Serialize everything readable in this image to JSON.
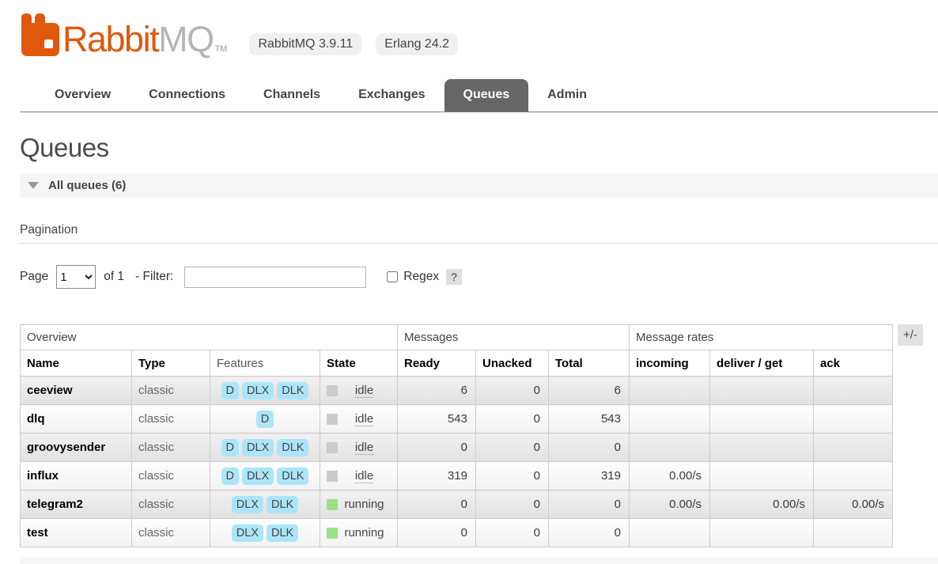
{
  "header": {
    "brand_orange": "Rabbit",
    "brand_gray": "MQ",
    "trademark": "TM",
    "badges": [
      "RabbitMQ 3.9.11",
      "Erlang 24.2"
    ]
  },
  "nav": {
    "tabs": [
      {
        "label": "Overview",
        "active": false
      },
      {
        "label": "Connections",
        "active": false
      },
      {
        "label": "Channels",
        "active": false
      },
      {
        "label": "Exchanges",
        "active": false
      },
      {
        "label": "Queues",
        "active": true
      },
      {
        "label": "Admin",
        "active": false
      }
    ]
  },
  "page": {
    "title": "Queues",
    "section_label": "All queues (6)",
    "pagination_label": "Pagination",
    "page_label": "Page",
    "page_selected": "1",
    "of_label": "of 1",
    "filter_label": "- Filter:",
    "filter_value": "",
    "regex_label": "Regex",
    "help_label": "?"
  },
  "table": {
    "group_headers": [
      "Overview",
      "Messages",
      "Message rates"
    ],
    "columns": [
      "Name",
      "Type",
      "Features",
      "State",
      "Ready",
      "Unacked",
      "Total",
      "incoming",
      "deliver / get",
      "ack"
    ],
    "plus_minus_label": "+/-",
    "rows": [
      {
        "name": "ceeview",
        "type": "classic",
        "features": [
          "D",
          "DLX",
          "DLK"
        ],
        "state": "idle",
        "ready": "6",
        "unacked": "0",
        "total": "6",
        "incoming": "",
        "deliver_get": "",
        "ack": ""
      },
      {
        "name": "dlq",
        "type": "classic",
        "features": [
          "D"
        ],
        "state": "idle",
        "ready": "543",
        "unacked": "0",
        "total": "543",
        "incoming": "",
        "deliver_get": "",
        "ack": ""
      },
      {
        "name": "groovysender",
        "type": "classic",
        "features": [
          "D",
          "DLX",
          "DLK"
        ],
        "state": "idle",
        "ready": "0",
        "unacked": "0",
        "total": "0",
        "incoming": "",
        "deliver_get": "",
        "ack": ""
      },
      {
        "name": "influx",
        "type": "classic",
        "features": [
          "D",
          "DLX",
          "DLK"
        ],
        "state": "idle",
        "ready": "319",
        "unacked": "0",
        "total": "319",
        "incoming": "0.00/s",
        "deliver_get": "",
        "ack": ""
      },
      {
        "name": "telegram2",
        "type": "classic",
        "features": [
          "DLX",
          "DLK"
        ],
        "state": "running",
        "ready": "0",
        "unacked": "0",
        "total": "0",
        "incoming": "0.00/s",
        "deliver_get": "0.00/s",
        "ack": "0.00/s"
      },
      {
        "name": "test",
        "type": "classic",
        "features": [
          "DLX",
          "DLK"
        ],
        "state": "running",
        "ready": "0",
        "unacked": "0",
        "total": "0",
        "incoming": "",
        "deliver_get": "",
        "ack": ""
      }
    ]
  },
  "colors": {
    "brand_orange": "#e0580c",
    "brand_gray": "#b5b5b5",
    "active_tab_bg": "#666666",
    "feature_badge_bg": "#ace5f9",
    "state_idle": "#cbcbcb",
    "state_running": "#9de186",
    "section_bar_bg": "#f6f6f6"
  }
}
